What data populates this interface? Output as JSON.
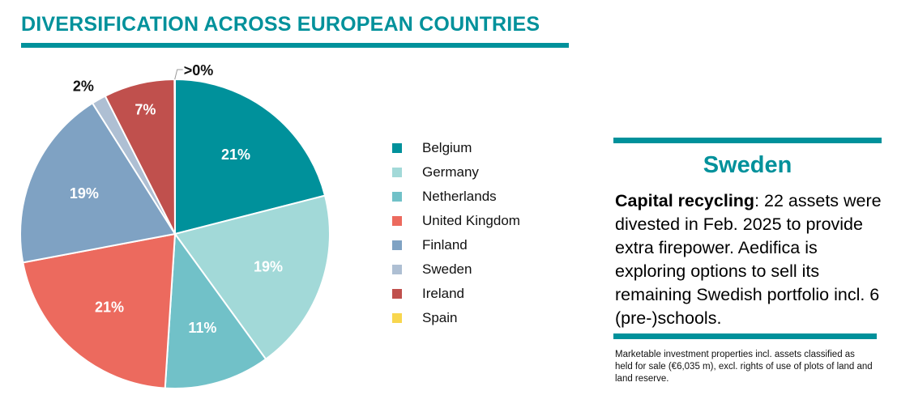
{
  "header": {
    "title": "DIVERSIFICATION ACROSS EUROPEAN COUNTRIES"
  },
  "chart_data": {
    "type": "pie",
    "title": "DIVERSIFICATION ACROSS EUROPEAN COUNTRIES",
    "legend_position": "right",
    "slices": [
      {
        "label": "Belgium",
        "value": 21,
        "display": "21%",
        "color": "#00919b",
        "label_color": "#ffffff"
      },
      {
        "label": "Germany",
        "value": 19,
        "display": "19%",
        "color": "#a2d9d8",
        "label_color": "#ffffff"
      },
      {
        "label": "Netherlands",
        "value": 11,
        "display": "11%",
        "color": "#71c1c8",
        "label_color": "#ffffff"
      },
      {
        "label": "United Kingdom",
        "value": 21,
        "display": "21%",
        "color": "#ec6a5e",
        "label_color": "#ffffff"
      },
      {
        "label": "Finland",
        "value": 19,
        "display": "19%",
        "color": "#7fa2c3",
        "label_color": "#ffffff"
      },
      {
        "label": "Sweden",
        "value": 1.5,
        "display": "2%",
        "color": "#aebfd3",
        "label_color": "#111111"
      },
      {
        "label": "Ireland",
        "value": 7.4,
        "display": "7%",
        "color": "#c0504d",
        "label_color": "#ffffff"
      },
      {
        "label": "Spain",
        "value": 0.05,
        "display": ">0%",
        "color": "#f8d64e",
        "label_color": "#111111"
      }
    ]
  },
  "sidebar": {
    "heading": "Sweden",
    "body_keyword": "Capital recycling",
    "body_text": ": 22 assets were divested in Feb. 2025 to provide extra firepower. Aedifica is exploring options to sell its remaining Swedish portfolio incl. 6 (pre-)schools.",
    "footnote": "Marketable investment properties incl. assets classified as held for sale (€6,035 m), excl. rights of use of plots of land and land reserve."
  }
}
